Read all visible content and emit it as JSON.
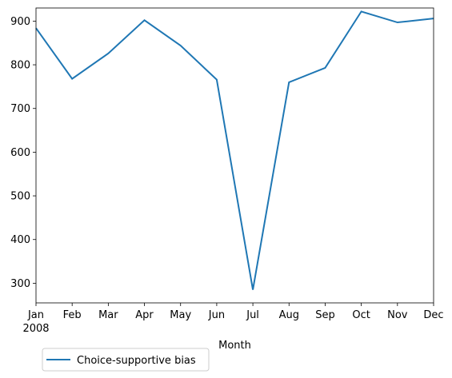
{
  "chart_data": {
    "type": "line",
    "xlabel": "Month",
    "ylabel": "",
    "ylim": [
      255,
      930
    ],
    "y_ticks": [
      300,
      400,
      500,
      600,
      700,
      800,
      900
    ],
    "x": [
      "2008-01",
      "2008-02",
      "2008-03",
      "2008-04",
      "2008-05",
      "2008-06",
      "2008-07",
      "2008-08",
      "2008-09",
      "2008-10",
      "2008-11",
      "2008-12"
    ],
    "x_tick_labels": [
      "Jan",
      "Feb",
      "Mar",
      "Apr",
      "May",
      "Jun",
      "Jul",
      "Aug",
      "Sep",
      "Oct",
      "Nov",
      "Dec"
    ],
    "x_tick_year_label": "2008",
    "series": [
      {
        "name": "Choice-supportive bias",
        "color": "#1f77b4",
        "values": [
          884,
          768,
          826,
          902,
          844,
          766,
          285,
          760,
          793,
          922,
          897,
          906
        ]
      }
    ],
    "legend_position": "bottom-left, below plot",
    "grid": false
  }
}
